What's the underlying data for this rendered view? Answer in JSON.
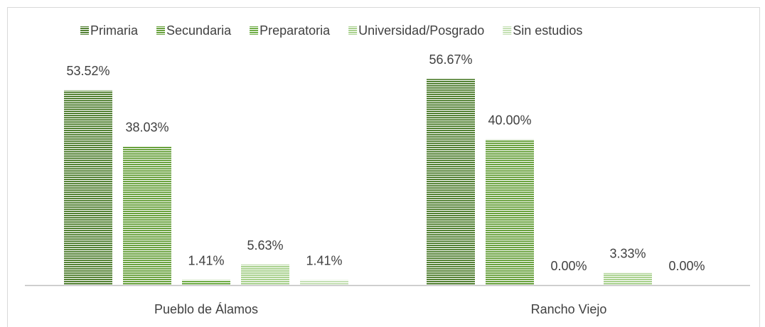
{
  "chart_data": {
    "type": "bar",
    "categories": [
      "Pueblo de Álamos",
      "Rancho Viejo"
    ],
    "series": [
      {
        "name": "Primaria",
        "color": "#548235",
        "values": [
          53.52,
          56.67
        ],
        "value_labels": [
          "53.52%",
          "56.67%"
        ]
      },
      {
        "name": "Secundaria",
        "color": "#6aa23f",
        "values": [
          38.03,
          40.0
        ],
        "value_labels": [
          "38.03%",
          "40.00%"
        ]
      },
      {
        "name": "Preparatoria",
        "color": "#70ad47",
        "values": [
          1.41,
          0.0
        ],
        "value_labels": [
          "1.41%",
          "0.00%"
        ]
      },
      {
        "name": "Universidad/Posgrado",
        "color": "#a9d18e",
        "values": [
          5.63,
          3.33
        ],
        "value_labels": [
          "5.63%",
          "3.33%"
        ]
      },
      {
        "name": "Sin estudios",
        "color": "#c5e0b4",
        "values": [
          1.41,
          0.0
        ],
        "value_labels": [
          "1.41%",
          "0.00%"
        ]
      }
    ],
    "legend": "top"
  }
}
